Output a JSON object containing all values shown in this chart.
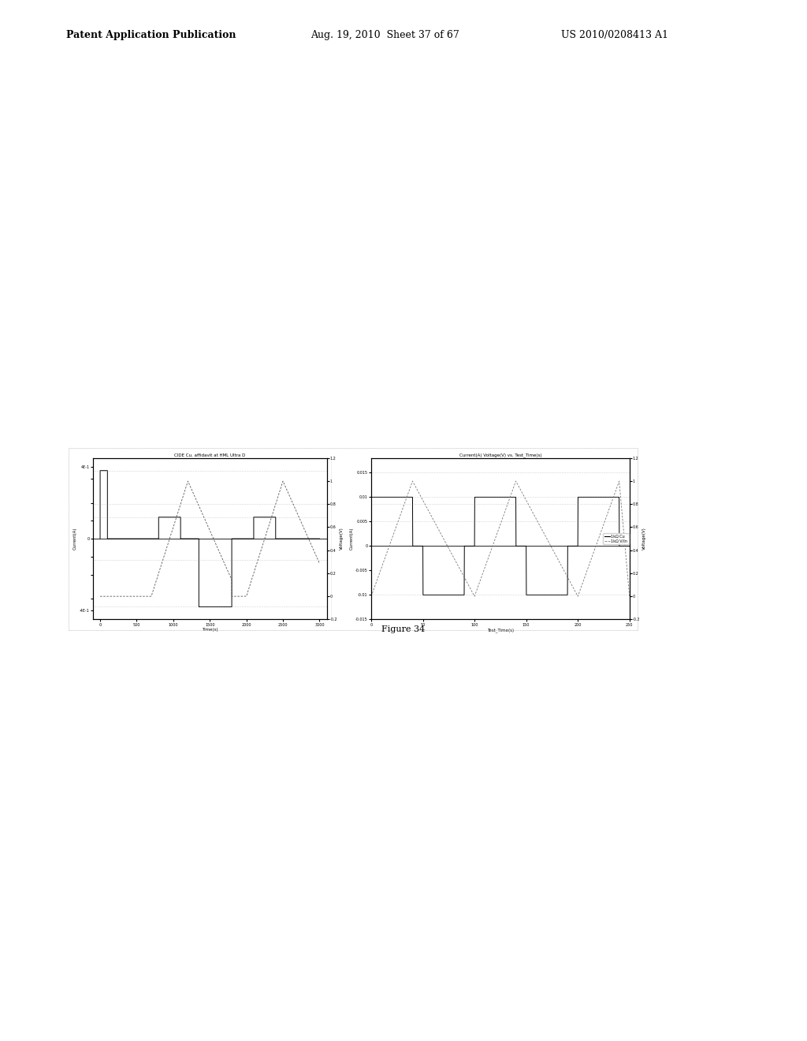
{
  "page_title_left": "Patent Application Publication",
  "page_title_center": "Aug. 19, 2010  Sheet 37 of 67",
  "page_title_right": "US 2010/0208413 A1",
  "figure_caption": "Figure 34",
  "chart1_title": "CIDE Cu. affidavit at HML Ultra D",
  "chart1_xlabel": "Time(s)",
  "chart1_ylabel_left": "Current(A)",
  "chart1_ylabel_right": "Voltage(V)",
  "chart2_title": "Current(A) Voltage(V) vs. Test_Time(s)",
  "chart2_xlabel": "Test_Time(s)",
  "chart2_ylabel_left": "Current(A)",
  "chart2_ylabel_right": "Voltage(V)",
  "background_color": "#ffffff",
  "legend_label1": "1kΩ Cu",
  "legend_label2": "1kΩ V/In"
}
